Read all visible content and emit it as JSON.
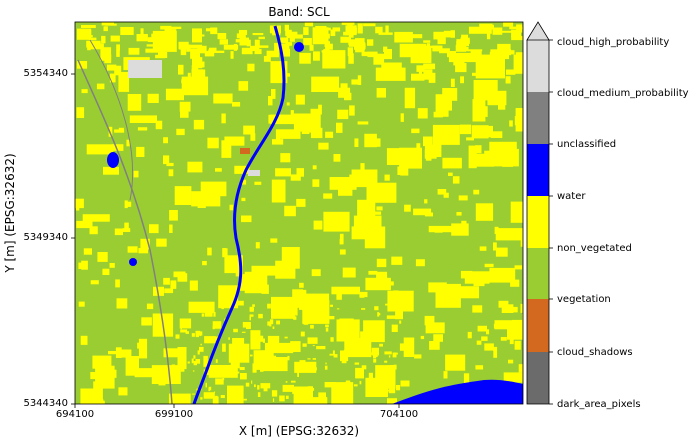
{
  "title": "Band: SCL",
  "xlabel": "X [m] (EPSG:32632)",
  "ylabel": "Y [m] (EPSG:32632)",
  "x_ticks": [
    "694100",
    "699100",
    "704100"
  ],
  "y_ticks": [
    "5354340",
    "5349340",
    "5344340"
  ],
  "colorbar": {
    "extend": "max",
    "classes": [
      {
        "label": "dark_area_pixels",
        "color": "#6b6b6b"
      },
      {
        "label": "cloud_shadows",
        "color": "#6b6b6b"
      },
      {
        "label": "vegetation",
        "color": "#d2691e"
      },
      {
        "label": "non_vegetated",
        "color": "#9acd32"
      },
      {
        "label": "water",
        "color": "#ffff00"
      },
      {
        "label": "unclassified",
        "color": "#0000ff"
      },
      {
        "label": "cloud_medium_probability",
        "color": "#808080"
      },
      {
        "label": "cloud_high_probability",
        "color": "#dcdcdc"
      }
    ]
  },
  "map_colors": {
    "background": "#9acd32",
    "fields": "#ffff00",
    "river": "#0000ff",
    "lake": "#0000ff",
    "roads": "#808080",
    "soil": "#d2691e",
    "cloud": "#dcdcdc"
  }
}
